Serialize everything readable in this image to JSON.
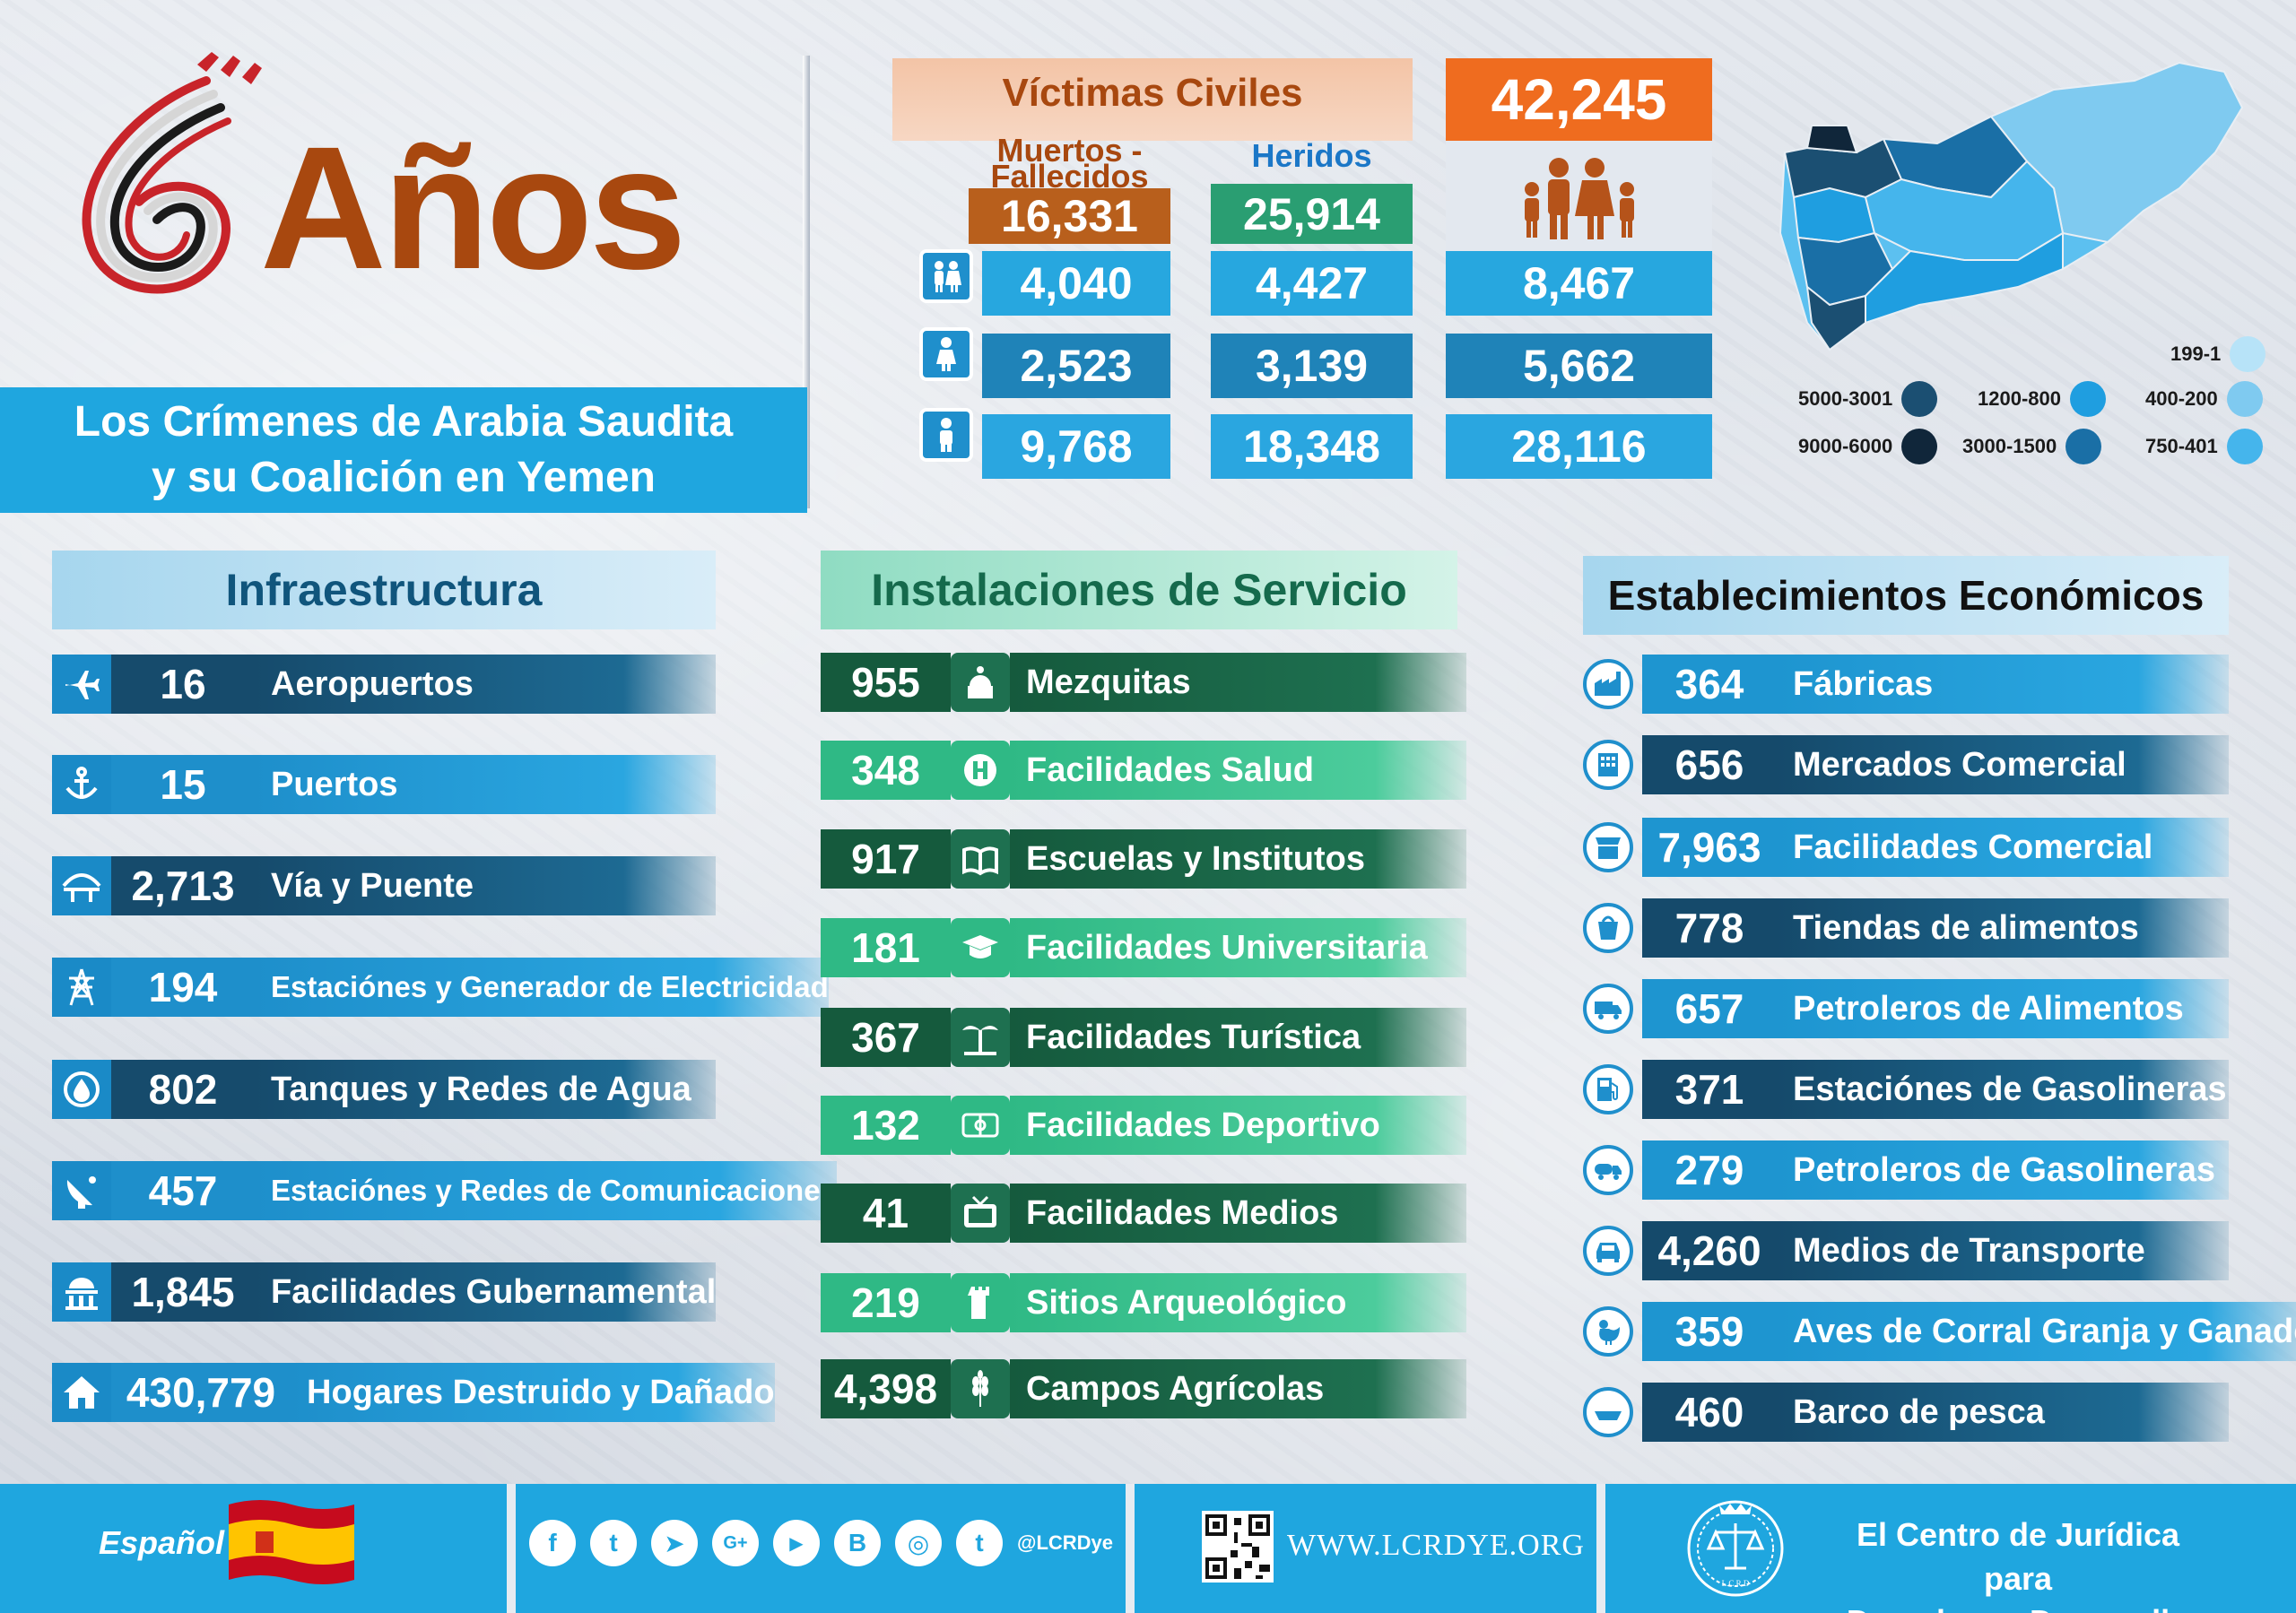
{
  "title": {
    "years_number": "6",
    "years_word": "Años",
    "subtitle_line1": "Los Crímenes de Arabia Saudita",
    "subtitle_line2": "y su Coalición en Yemen"
  },
  "victims": {
    "header": "Víctimas Civiles",
    "total": "42,245",
    "col_dead": "Muertos - Fallecidos",
    "col_injured": "Heridos",
    "dead_total": "16,331",
    "injured_total": "25,914",
    "rows": [
      {
        "icon": "children-icon",
        "dead": "4,040",
        "injured": "4,427",
        "total": "8,467"
      },
      {
        "icon": "woman-icon",
        "dead": "2,523",
        "injured": "3,139",
        "total": "5,662"
      },
      {
        "icon": "man-icon",
        "dead": "9,768",
        "injured": "18,348",
        "total": "28,116"
      }
    ]
  },
  "map_legend": [
    {
      "label": "199-1",
      "color": "#b7e3f8"
    },
    {
      "label": "1200-800",
      "color": "#1f9ee0"
    },
    {
      "label": "400-200",
      "color": "#7fcaf0"
    },
    {
      "label": "5000-3001",
      "color": "#1b4f72"
    },
    {
      "label": "3000-1500",
      "color": "#1a6fa6"
    },
    {
      "label": "750-401",
      "color": "#45b5ec"
    },
    {
      "label": "9000-6000",
      "color": "#10263a"
    }
  ],
  "infrastructure": {
    "title": "Infraestructura",
    "items": [
      {
        "value": "16",
        "label": "Aeropuertos",
        "icon": "airplane-icon"
      },
      {
        "value": "15",
        "label": "Puertos",
        "icon": "anchor-icon"
      },
      {
        "value": "2,713",
        "label": "Vía y Puente",
        "icon": "bridge-icon"
      },
      {
        "value": "194",
        "label": "Estaciónes y Generador de Electricidad",
        "icon": "power-tower-icon"
      },
      {
        "value": "802",
        "label": "Tanques y Redes de Agua",
        "icon": "water-icon"
      },
      {
        "value": "457",
        "label": "Estaciónes y Redes de Comunicaciones",
        "icon": "satellite-dish-icon"
      },
      {
        "value": "1,845",
        "label": "Facilidades Gubernamental",
        "icon": "government-building-icon"
      },
      {
        "value": "430,779",
        "label": "Hogares Destruido y Dañado",
        "icon": "house-icon"
      }
    ]
  },
  "services": {
    "title": "Instalaciones de Servicio",
    "items": [
      {
        "value": "955",
        "label": "Mezquitas",
        "icon": "mosque-icon"
      },
      {
        "value": "348",
        "label": "Facilidades Salud",
        "icon": "hospital-icon"
      },
      {
        "value": "917",
        "label": "Escuelas y Institutos",
        "icon": "school-icon"
      },
      {
        "value": "181",
        "label": "Facilidades Universitaria",
        "icon": "graduation-cap-icon"
      },
      {
        "value": "367",
        "label": "Facilidades Turística",
        "icon": "palm-tree-icon"
      },
      {
        "value": "132",
        "label": "Facilidades Deportivo",
        "icon": "stadium-icon"
      },
      {
        "value": "41",
        "label": "Facilidades Medios",
        "icon": "tv-icon"
      },
      {
        "value": "219",
        "label": "Sitios Arqueológico",
        "icon": "tower-icon"
      },
      {
        "value": "4,398",
        "label": "Campos Agrícolas",
        "icon": "wheat-icon"
      }
    ]
  },
  "economic": {
    "title": "Establecimientos Económicos",
    "items": [
      {
        "value": "364",
        "label": "Fábricas",
        "icon": "factory-icon"
      },
      {
        "value": "656",
        "label": "Mercados Comercial",
        "icon": "market-building-icon"
      },
      {
        "value": "7,963",
        "label": "Facilidades Comercial",
        "icon": "shop-icon"
      },
      {
        "value": "778",
        "label": "Tiendas de alimentos",
        "icon": "food-store-icon"
      },
      {
        "value": "657",
        "label": "Petroleros de Alimentos",
        "icon": "food-truck-icon"
      },
      {
        "value": "371",
        "label": "Estaciónes de Gasolineras",
        "icon": "fuel-pump-icon"
      },
      {
        "value": "279",
        "label": "Petroleros de Gasolineras",
        "icon": "tanker-truck-icon"
      },
      {
        "value": "4,260",
        "label": "Medios de Transporte",
        "icon": "car-icon"
      },
      {
        "value": "359",
        "label": "Aves de Corral Granja y Ganado",
        "icon": "rooster-icon"
      },
      {
        "value": "460",
        "label": "Barco de pesca",
        "icon": "boat-icon"
      }
    ]
  },
  "footer": {
    "language": "Español",
    "handle": "@LCRDye",
    "website": "WWW.LCRDYE.ORG",
    "org_line1": "El Centro de Jurídica para",
    "org_line2": "Derechos y Desarrollo",
    "logo_text": "L.C.R.D",
    "social": [
      {
        "icon": "facebook-icon",
        "glyph": "f"
      },
      {
        "icon": "twitter-icon",
        "glyph": "t"
      },
      {
        "icon": "telegram-icon",
        "glyph": "➤"
      },
      {
        "icon": "google-plus-icon",
        "glyph": "G+"
      },
      {
        "icon": "youtube-icon",
        "glyph": "▶"
      },
      {
        "icon": "blogger-icon",
        "glyph": "B"
      },
      {
        "icon": "instagram-icon",
        "glyph": "◎"
      },
      {
        "icon": "tumblr-icon",
        "glyph": "t"
      }
    ]
  }
}
